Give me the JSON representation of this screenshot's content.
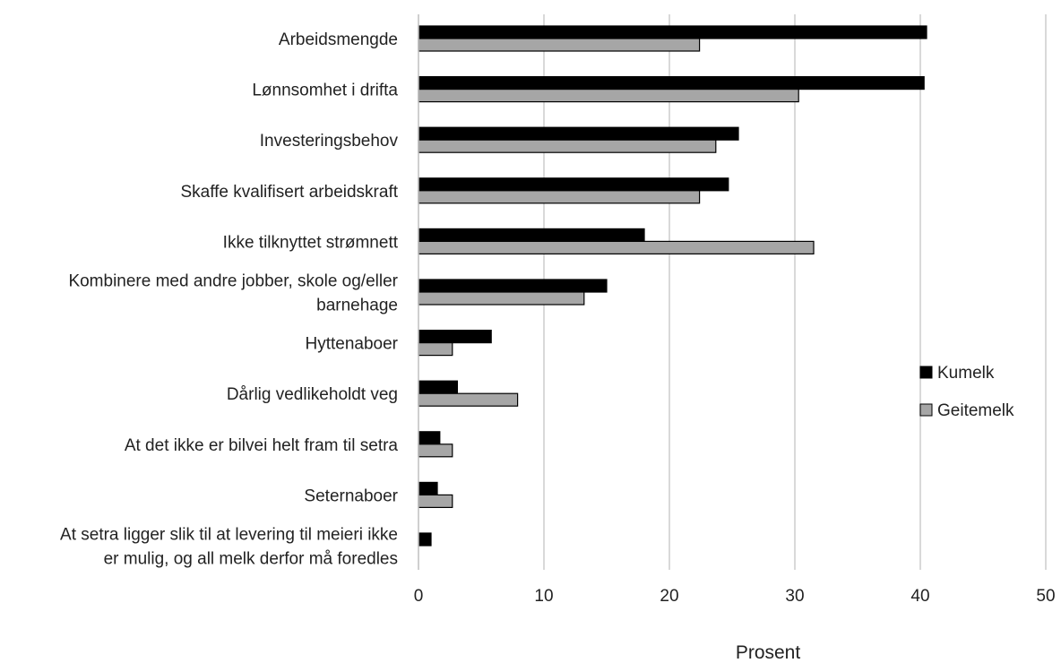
{
  "chart_data": {
    "type": "bar",
    "orientation": "horizontal",
    "categories": [
      "Arbeidsmengde",
      "Lønnsomhet i drifta",
      "Investeringsbehov",
      "Skaffe kvalifisert arbeidskraft",
      "Ikke tilknyttet strømnett",
      "Kombinere med andre jobber, skole og/eller barnehage",
      "Hyttenaboer",
      "Dårlig vedlikeholdt veg",
      "At det ikke er bilvei helt fram til setra",
      "Seternaboer",
      "At setra ligger slik til at levering til meieri ikke er mulig, og all melk derfor må foredles"
    ],
    "category_lines": [
      [
        "Arbeidsmengde"
      ],
      [
        "Lønnsomhet i drifta"
      ],
      [
        "Investeringsbehov"
      ],
      [
        "Skaffe kvalifisert arbeidskraft"
      ],
      [
        "Ikke tilknyttet strømnett"
      ],
      [
        "Kombinere med andre jobber, skole og/eller",
        "barnehage"
      ],
      [
        "Hyttenaboer"
      ],
      [
        "Dårlig vedlikeholdt veg"
      ],
      [
        "At det ikke er bilvei helt fram til setra"
      ],
      [
        "Seternaboer"
      ],
      [
        "At setra ligger slik til at levering til meieri ikke",
        "er mulig, og all melk derfor må foredles"
      ]
    ],
    "series": [
      {
        "name": "Kumelk",
        "color": "#000000",
        "values": [
          40.5,
          40.3,
          25.5,
          24.7,
          18.0,
          15.0,
          5.8,
          3.1,
          1.7,
          1.5,
          1.0
        ]
      },
      {
        "name": "Geitemelk",
        "color": "#a6a6a6",
        "values": [
          22.4,
          30.3,
          23.7,
          22.4,
          31.5,
          13.2,
          2.7,
          7.9,
          2.7,
          2.7,
          0
        ]
      }
    ],
    "xlabel": "Prosent",
    "ylabel": "",
    "title": "",
    "xlim": [
      0,
      50
    ],
    "xticks": [
      0,
      10,
      20,
      30,
      40,
      50
    ],
    "grid": "vertical",
    "legend_position": "right"
  },
  "colors": {
    "gridline": "#d9d9d9",
    "bar_outline": "#000000",
    "axis_line": "#bfbfbf"
  }
}
